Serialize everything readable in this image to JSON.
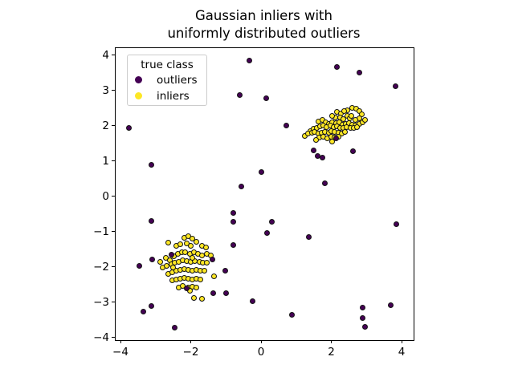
{
  "title": {
    "line1": "Gaussian inliers with",
    "line2": "uniformly distributed outliers"
  },
  "legend": {
    "title": "true class",
    "items": [
      {
        "label": "outliers",
        "color": "#440154"
      },
      {
        "label": "inliers",
        "color": "#fde725"
      }
    ]
  },
  "colors": {
    "outlier": "#440154",
    "inlier": "#fde725",
    "edge": "#141414"
  },
  "chart_data": {
    "type": "scatter",
    "title": "Gaussian inliers with\nuniformly distributed outliers",
    "xlim": [
      -4.14,
      4.34
    ],
    "ylim": [
      -4.08,
      4.2
    ],
    "grid": false,
    "legend_position": "upper left",
    "legend_title": "true class",
    "xticks": [
      {
        "v": -4,
        "label": "−4"
      },
      {
        "v": -2,
        "label": "−2"
      },
      {
        "v": 0,
        "label": "0"
      },
      {
        "v": 2,
        "label": "2"
      },
      {
        "v": 4,
        "label": "4"
      }
    ],
    "yticks": [
      {
        "v": 4,
        "label": "4"
      },
      {
        "v": 3,
        "label": "3"
      },
      {
        "v": 2,
        "label": "2"
      },
      {
        "v": 1,
        "label": "1"
      },
      {
        "v": 0,
        "label": "0"
      },
      {
        "v": -1,
        "label": "−1"
      },
      {
        "v": -2,
        "label": "−2"
      },
      {
        "v": -3,
        "label": "−3"
      },
      {
        "v": -4,
        "label": "−4"
      }
    ],
    "series": [
      {
        "name": "inliers",
        "color": "#fde725",
        "points": [
          [
            -2.64,
            -1.31
          ],
          [
            -2.41,
            -1.41
          ],
          [
            -2.3,
            -1.36
          ],
          [
            -2.18,
            -1.17
          ],
          [
            -2.07,
            -1.14
          ],
          [
            -1.95,
            -1.21
          ],
          [
            -1.84,
            -1.29
          ],
          [
            -2.11,
            -1.33
          ],
          [
            -2.0,
            -1.4
          ],
          [
            -1.69,
            -1.4
          ],
          [
            -1.57,
            -1.44
          ],
          [
            -2.72,
            -1.74
          ],
          [
            -2.6,
            -1.82
          ],
          [
            -2.49,
            -1.7
          ],
          [
            -2.37,
            -1.63
          ],
          [
            -2.26,
            -1.58
          ],
          [
            -2.15,
            -1.59
          ],
          [
            -2.03,
            -1.63
          ],
          [
            -1.92,
            -1.58
          ],
          [
            -1.8,
            -1.63
          ],
          [
            -1.69,
            -1.67
          ],
          [
            -1.54,
            -1.63
          ],
          [
            -1.42,
            -1.67
          ],
          [
            -2.79,
            -2.01
          ],
          [
            -2.68,
            -1.97
          ],
          [
            -2.56,
            -1.93
          ],
          [
            -2.45,
            -1.89
          ],
          [
            -2.34,
            -1.86
          ],
          [
            -2.22,
            -1.82
          ],
          [
            -2.11,
            -1.84
          ],
          [
            -2.0,
            -1.86
          ],
          [
            -1.88,
            -1.84
          ],
          [
            -1.76,
            -1.86
          ],
          [
            -1.65,
            -1.88
          ],
          [
            -1.54,
            -1.89
          ],
          [
            -2.64,
            -2.2
          ],
          [
            -2.53,
            -2.16
          ],
          [
            -2.41,
            -2.12
          ],
          [
            -2.3,
            -2.08
          ],
          [
            -2.18,
            -2.07
          ],
          [
            -2.07,
            -2.09
          ],
          [
            -1.96,
            -2.1
          ],
          [
            -1.84,
            -2.08
          ],
          [
            -1.73,
            -2.1
          ],
          [
            -1.61,
            -2.12
          ],
          [
            -2.53,
            -2.39
          ],
          [
            -2.41,
            -2.35
          ],
          [
            -2.3,
            -2.33
          ],
          [
            -2.18,
            -2.31
          ],
          [
            -2.07,
            -2.33
          ],
          [
            -1.96,
            -2.36
          ],
          [
            -1.84,
            -2.33
          ],
          [
            -1.73,
            -2.35
          ],
          [
            -2.34,
            -2.58
          ],
          [
            -2.22,
            -2.55
          ],
          [
            -2.07,
            -2.58
          ],
          [
            -1.96,
            -2.56
          ],
          [
            -1.84,
            -2.58
          ],
          [
            -2.03,
            -2.67
          ],
          [
            -2.87,
            -1.86
          ],
          [
            -2.5,
            -2.02
          ],
          [
            -1.95,
            -1.74
          ],
          [
            -1.33,
            -2.27
          ],
          [
            -1.9,
            -2.89
          ],
          [
            -1.67,
            -2.91
          ],
          [
            2.46,
            2.45
          ],
          [
            2.59,
            2.5
          ],
          [
            2.71,
            2.48
          ],
          [
            2.81,
            2.42
          ],
          [
            2.87,
            2.33
          ],
          [
            2.79,
            2.22
          ],
          [
            2.69,
            2.17
          ],
          [
            2.16,
            2.4
          ],
          [
            2.28,
            2.36
          ],
          [
            2.37,
            2.41
          ],
          [
            2.24,
            2.23
          ],
          [
            2.35,
            2.19
          ],
          [
            2.45,
            2.28
          ],
          [
            2.12,
            2.24
          ],
          [
            2.03,
            2.28
          ],
          [
            1.63,
            2.12
          ],
          [
            1.74,
            2.16
          ],
          [
            1.84,
            2.11
          ],
          [
            1.93,
            2.06
          ],
          [
            2.03,
            2.1
          ],
          [
            2.13,
            2.07
          ],
          [
            2.22,
            2.09
          ],
          [
            2.31,
            2.04
          ],
          [
            2.41,
            2.06
          ],
          [
            2.5,
            2.08
          ],
          [
            2.6,
            2.04
          ],
          [
            2.69,
            2.02
          ],
          [
            2.79,
            2.06
          ],
          [
            2.88,
            2.11
          ],
          [
            2.96,
            2.17
          ],
          [
            2.52,
            2.21
          ],
          [
            2.57,
            2.29
          ],
          [
            1.4,
            1.85
          ],
          [
            1.49,
            1.91
          ],
          [
            1.59,
            1.95
          ],
          [
            1.68,
            1.98
          ],
          [
            1.78,
            2.01
          ],
          [
            1.87,
            1.97
          ],
          [
            1.97,
            2.0
          ],
          [
            2.06,
            1.97
          ],
          [
            2.16,
            1.99
          ],
          [
            2.25,
            1.95
          ],
          [
            2.35,
            1.93
          ],
          [
            2.44,
            1.97
          ],
          [
            2.54,
            1.95
          ],
          [
            2.63,
            1.93
          ],
          [
            2.73,
            1.97
          ],
          [
            1.24,
            1.72
          ],
          [
            1.34,
            1.78
          ],
          [
            1.44,
            1.8
          ],
          [
            1.53,
            1.82
          ],
          [
            1.63,
            1.79
          ],
          [
            1.72,
            1.81
          ],
          [
            1.82,
            1.83
          ],
          [
            1.92,
            1.81
          ],
          [
            2.01,
            1.86
          ],
          [
            2.1,
            1.83
          ],
          [
            2.2,
            1.81
          ],
          [
            2.3,
            1.79
          ],
          [
            2.39,
            1.83
          ],
          [
            1.66,
            1.66
          ],
          [
            1.78,
            1.68
          ],
          [
            1.89,
            1.64
          ],
          [
            1.99,
            1.68
          ],
          [
            2.08,
            1.66
          ],
          [
            2.2,
            1.68
          ],
          [
            2.02,
            1.56
          ],
          [
            1.57,
            1.61
          ]
        ]
      },
      {
        "name": "outliers",
        "color": "#440154",
        "points": [
          [
            -0.34,
            3.86
          ],
          [
            -0.6,
            2.88
          ],
          [
            0.15,
            2.78
          ],
          [
            -3.75,
            1.93
          ],
          [
            -3.11,
            0.9
          ],
          [
            0.0,
            0.7
          ],
          [
            -0.55,
            0.27
          ],
          [
            2.17,
            3.68
          ],
          [
            2.79,
            3.5
          ],
          [
            3.82,
            3.13
          ],
          [
            0.73,
            2.0
          ],
          [
            1.49,
            1.31
          ],
          [
            1.62,
            1.14
          ],
          [
            1.74,
            1.1
          ],
          [
            2.61,
            1.29
          ],
          [
            1.81,
            0.38
          ],
          [
            2.13,
            1.64
          ],
          [
            -3.11,
            -0.69
          ],
          [
            -0.8,
            -0.48
          ],
          [
            -0.78,
            -0.71
          ],
          [
            0.31,
            -0.72
          ],
          [
            0.18,
            -1.04
          ],
          [
            1.37,
            -1.16
          ],
          [
            3.84,
            -0.78
          ],
          [
            -3.47,
            -1.97
          ],
          [
            -3.09,
            -1.79
          ],
          [
            -2.54,
            -1.66
          ],
          [
            -2.12,
            -2.6
          ],
          [
            -1.38,
            -1.8
          ],
          [
            -0.78,
            -1.37
          ],
          [
            -1.01,
            -2.12
          ],
          [
            -1.37,
            -2.75
          ],
          [
            -0.99,
            -2.74
          ],
          [
            -3.11,
            -3.1
          ],
          [
            -3.36,
            -3.28
          ],
          [
            -2.45,
            -3.73
          ],
          [
            -0.23,
            -2.98
          ],
          [
            0.88,
            -3.36
          ],
          [
            2.9,
            -3.16
          ],
          [
            2.9,
            -3.46
          ],
          [
            2.95,
            -3.71
          ],
          [
            3.68,
            -3.08
          ]
        ]
      }
    ]
  }
}
